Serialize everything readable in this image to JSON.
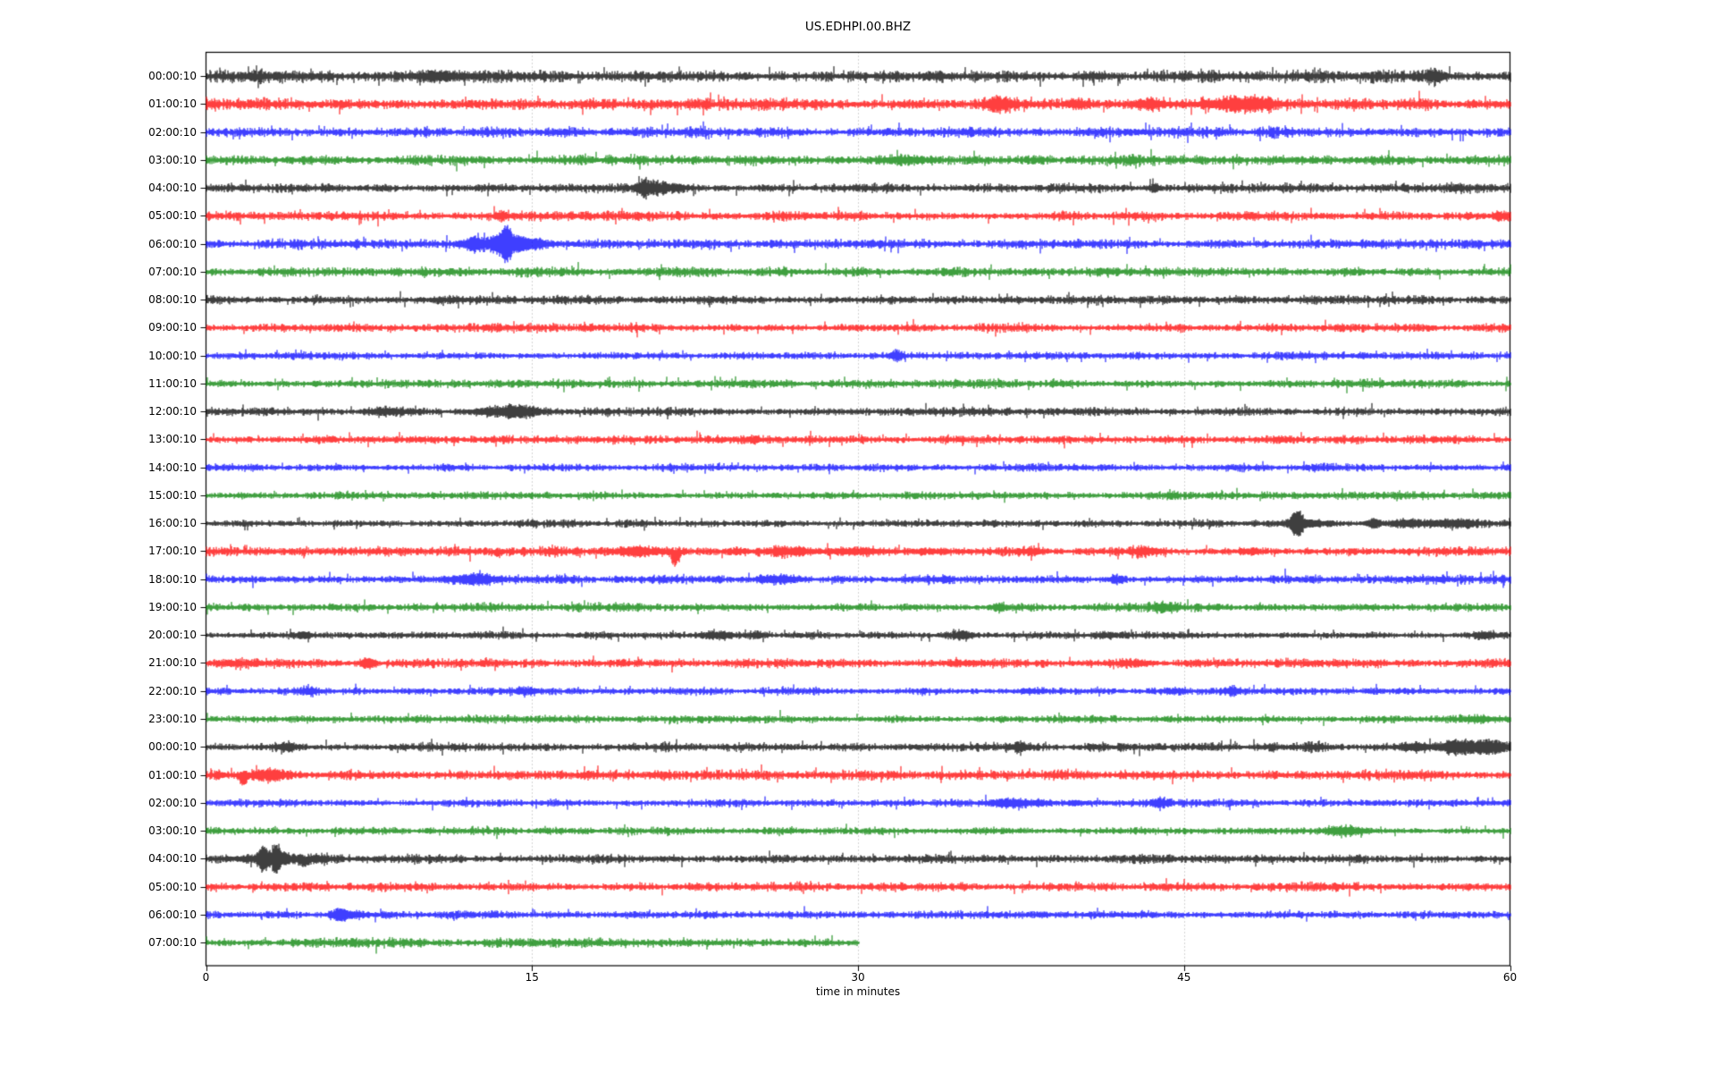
{
  "title": "US.EDHPI.00.BHZ",
  "xlabel": "time in minutes",
  "chart_data": {
    "type": "line",
    "subtype": "helicorder-dayplot-seismogram",
    "title": "US.EDHPI.00.BHZ",
    "xlabel": "time in minutes",
    "xlim": [
      0,
      60
    ],
    "xticks": [
      0,
      15,
      30,
      45,
      60
    ],
    "grid": {
      "vertical_minutes": [
        15,
        30,
        45
      ],
      "color": "#aaaaaa",
      "style": "dotted"
    },
    "frame_color": "#000000",
    "background": "#ffffff",
    "trace_colors": [
      "#000000",
      "#ff0000",
      "#0000ff",
      "#008000"
    ],
    "event_format": "[start_minute, width_minutes, extra_halfheight_px, direction(0=both,1=up,-1=down)]",
    "rows": [
      {
        "label": "00:00:10",
        "color": 0,
        "noise": 4.2,
        "end": 60,
        "events": [
          [
            2.4,
            0.5,
            2,
            0
          ],
          [
            10.9,
            1.0,
            4,
            0
          ],
          [
            33.6,
            0.4,
            2,
            0
          ],
          [
            40.9,
            0.3,
            2,
            0
          ],
          [
            56.5,
            0.25,
            6,
            0
          ]
        ]
      },
      {
        "label": "01:00:10",
        "color": 1,
        "noise": 4.0,
        "end": 60,
        "events": [
          [
            20.5,
            0.2,
            3,
            -1
          ],
          [
            36.5,
            0.4,
            7,
            0
          ],
          [
            40.1,
            0.3,
            4,
            0
          ],
          [
            43.3,
            0.5,
            4,
            0
          ],
          [
            47.3,
            0.9,
            5,
            0
          ],
          [
            48.6,
            0.4,
            3,
            0
          ]
        ]
      },
      {
        "label": "02:00:10",
        "color": 2,
        "noise": 3.6,
        "end": 60,
        "events": []
      },
      {
        "label": "03:00:10",
        "color": 3,
        "noise": 3.6,
        "end": 60,
        "events": [
          [
            32.3,
            0.7,
            3,
            0
          ]
        ]
      },
      {
        "label": "04:00:10",
        "color": 0,
        "noise": 3.2,
        "end": 60,
        "events": [
          [
            20.2,
            0.25,
            6,
            0
          ],
          [
            20.9,
            0.7,
            4,
            0
          ],
          [
            43.6,
            0.15,
            4,
            0
          ]
        ]
      },
      {
        "label": "05:00:10",
        "color": 1,
        "noise": 3.2,
        "end": 60,
        "events": [
          [
            13.6,
            0.2,
            4,
            0
          ],
          [
            59.5,
            0.2,
            4,
            0
          ]
        ]
      },
      {
        "label": "06:00:10",
        "color": 2,
        "noise": 3.2,
        "end": 60,
        "events": [
          [
            12.3,
            0.2,
            5,
            0
          ],
          [
            13.2,
            0.8,
            6,
            0
          ],
          [
            13.75,
            0.2,
            14,
            0
          ],
          [
            14.2,
            0.5,
            5,
            0
          ],
          [
            15.1,
            0.6,
            3,
            0
          ]
        ]
      },
      {
        "label": "07:00:10",
        "color": 3,
        "noise": 3.2,
        "end": 60,
        "events": []
      },
      {
        "label": "08:00:10",
        "color": 0,
        "noise": 3.0,
        "end": 60,
        "events": [
          [
            11.5,
            0.5,
            1.5,
            0
          ]
        ]
      },
      {
        "label": "09:00:10",
        "color": 1,
        "noise": 3.0,
        "end": 60,
        "events": []
      },
      {
        "label": "10:00:10",
        "color": 2,
        "noise": 2.6,
        "end": 60,
        "events": [
          [
            31.8,
            0.2,
            4,
            0
          ]
        ]
      },
      {
        "label": "11:00:10",
        "color": 3,
        "noise": 3.0,
        "end": 60,
        "events": []
      },
      {
        "label": "12:00:10",
        "color": 0,
        "noise": 3.0,
        "end": 60,
        "events": [
          [
            8.3,
            0.6,
            2,
            0
          ],
          [
            13.8,
            1.0,
            4,
            0
          ],
          [
            14.6,
            0.5,
            3,
            0
          ]
        ]
      },
      {
        "label": "13:00:10",
        "color": 1,
        "noise": 3.0,
        "end": 60,
        "events": []
      },
      {
        "label": "14:00:10",
        "color": 2,
        "noise": 2.6,
        "end": 60,
        "events": []
      },
      {
        "label": "15:00:10",
        "color": 3,
        "noise": 2.6,
        "end": 60,
        "events": []
      },
      {
        "label": "16:00:10",
        "color": 0,
        "noise": 2.6,
        "end": 60,
        "events": [
          [
            50.2,
            0.2,
            14,
            0
          ],
          [
            50.6,
            0.8,
            3,
            0
          ],
          [
            53.7,
            0.25,
            4,
            0
          ],
          [
            55.2,
            0.3,
            2,
            0
          ],
          [
            56.3,
            1.2,
            3,
            0
          ],
          [
            58.0,
            0.4,
            2,
            0
          ]
        ]
      },
      {
        "label": "17:00:10",
        "color": 1,
        "noise": 3.2,
        "end": 60,
        "events": [
          [
            13.4,
            0.2,
            4,
            -1
          ],
          [
            16.0,
            0.2,
            3,
            0
          ],
          [
            19.9,
            0.7,
            4,
            0
          ],
          [
            21.6,
            0.15,
            16,
            -1
          ],
          [
            24.5,
            0.4,
            2,
            0
          ],
          [
            27.0,
            0.8,
            3,
            0
          ],
          [
            29.9,
            0.8,
            3,
            0
          ],
          [
            33.4,
            0.6,
            2,
            0
          ],
          [
            37.9,
            0.4,
            2,
            0
          ],
          [
            43.2,
            0.5,
            2,
            0
          ],
          [
            48.0,
            0.3,
            2,
            0
          ]
        ]
      },
      {
        "label": "18:00:10",
        "color": 2,
        "noise": 3.0,
        "end": 60,
        "events": [
          [
            12.3,
            0.8,
            4,
            0
          ],
          [
            26.3,
            0.7,
            3,
            0
          ],
          [
            34.0,
            0.3,
            2,
            0
          ],
          [
            41.9,
            0.25,
            4,
            0
          ]
        ]
      },
      {
        "label": "19:00:10",
        "color": 3,
        "noise": 3.0,
        "end": 60,
        "events": [
          [
            36.5,
            0.25,
            3,
            0
          ],
          [
            44.1,
            0.4,
            3,
            0
          ]
        ]
      },
      {
        "label": "20:00:10",
        "color": 0,
        "noise": 2.6,
        "end": 60,
        "events": [
          [
            4.5,
            0.25,
            3,
            0
          ],
          [
            23.5,
            0.5,
            3,
            0
          ],
          [
            25.3,
            0.3,
            2,
            0
          ],
          [
            34.8,
            0.3,
            3,
            0
          ],
          [
            41.4,
            0.4,
            2,
            0
          ],
          [
            58.8,
            0.3,
            3,
            0
          ]
        ]
      },
      {
        "label": "21:00:10",
        "color": 1,
        "noise": 3.0,
        "end": 60,
        "events": [
          [
            1.2,
            0.5,
            2,
            0
          ],
          [
            7.4,
            0.25,
            4,
            0
          ],
          [
            34.8,
            0.4,
            2,
            0
          ],
          [
            42.6,
            0.5,
            2,
            0
          ]
        ]
      },
      {
        "label": "22:00:10",
        "color": 2,
        "noise": 2.6,
        "end": 60,
        "events": [
          [
            4.7,
            0.4,
            2,
            0
          ],
          [
            14.8,
            0.4,
            2,
            0
          ],
          [
            38.0,
            0.4,
            2,
            0
          ],
          [
            47.2,
            0.25,
            4,
            0
          ]
        ]
      },
      {
        "label": "23:00:10",
        "color": 3,
        "noise": 2.6,
        "end": 60,
        "events": [
          [
            58.6,
            0.5,
            2,
            0
          ]
        ]
      },
      {
        "label": "00:00:10",
        "color": 0,
        "noise": 3.0,
        "end": 60,
        "events": [
          [
            3.7,
            0.3,
            3,
            0
          ],
          [
            37.4,
            0.3,
            3,
            0
          ],
          [
            51.0,
            0.4,
            2,
            0
          ],
          [
            55.6,
            0.5,
            3,
            0
          ],
          [
            57.4,
            0.5,
            6,
            0
          ],
          [
            58.4,
            0.6,
            5,
            0
          ],
          [
            59.3,
            0.4,
            5,
            0
          ]
        ]
      },
      {
        "label": "01:00:10",
        "color": 1,
        "noise": 3.4,
        "end": 60,
        "events": [
          [
            0.6,
            0.3,
            2,
            0
          ],
          [
            1.7,
            0.15,
            9,
            -1
          ],
          [
            2.9,
            0.7,
            5,
            0
          ]
        ]
      },
      {
        "label": "02:00:10",
        "color": 2,
        "noise": 2.6,
        "end": 60,
        "events": [
          [
            36.8,
            0.6,
            4,
            0
          ],
          [
            38.3,
            0.4,
            2,
            0
          ],
          [
            40.0,
            0.3,
            2,
            0
          ],
          [
            43.9,
            0.3,
            4,
            0
          ]
        ]
      },
      {
        "label": "03:00:10",
        "color": 3,
        "noise": 2.6,
        "end": 60,
        "events": [
          [
            52.4,
            0.6,
            4,
            0
          ]
        ]
      },
      {
        "label": "04:00:10",
        "color": 0,
        "noise": 3.0,
        "end": 60,
        "events": [
          [
            2.6,
            0.15,
            10,
            0
          ],
          [
            3.0,
            1.0,
            4,
            0
          ],
          [
            3.2,
            0.15,
            12,
            0
          ],
          [
            4.5,
            0.15,
            7,
            -1
          ],
          [
            5.2,
            0.4,
            2,
            0
          ]
        ]
      },
      {
        "label": "05:00:10",
        "color": 1,
        "noise": 3.0,
        "end": 60,
        "events": []
      },
      {
        "label": "06:00:10",
        "color": 2,
        "noise": 2.6,
        "end": 60,
        "events": [
          [
            6.1,
            0.2,
            5,
            0
          ],
          [
            6.7,
            0.5,
            3,
            0
          ]
        ]
      },
      {
        "label": "07:00:10",
        "color": 3,
        "noise": 3.2,
        "end": 30,
        "events": []
      }
    ]
  }
}
